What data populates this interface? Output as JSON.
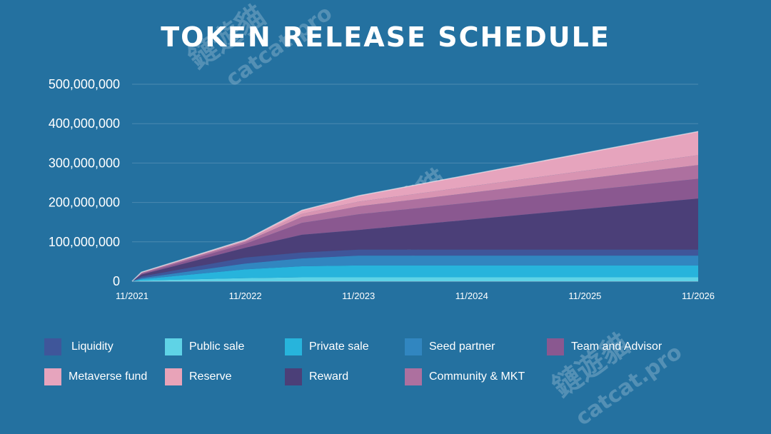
{
  "title": "TOKEN RELEASE SCHEDULE",
  "watermark": {
    "text1": "鏈遊貓",
    "text2": "catcat.pro"
  },
  "chart_data": {
    "type": "area",
    "stacked": true,
    "title": "TOKEN RELEASE SCHEDULE",
    "x": [
      "11/2021",
      "12/2021",
      "11/2022",
      "05/2023",
      "11/2023",
      "11/2026"
    ],
    "x_ticks": [
      "11/2021",
      "11/2022",
      "11/2023",
      "11/2024",
      "11/2025",
      "11/2026"
    ],
    "y_ticks": [
      "0",
      "100,000,000",
      "200,000,000",
      "300,000,000",
      "400,000,000",
      "500,000,000"
    ],
    "ylim": [
      0,
      500000000
    ],
    "grid": true,
    "series": [
      {
        "name": "Public sale",
        "color": "#5fd3e6",
        "values": [
          0,
          2000000,
          8000000,
          10000000,
          10000000,
          10000000
        ]
      },
      {
        "name": "Private sale",
        "color": "#27b4dc",
        "values": [
          0,
          3000000,
          22000000,
          28000000,
          30000000,
          30000000
        ]
      },
      {
        "name": "Seed partner",
        "color": "#3186c0",
        "values": [
          0,
          3000000,
          15000000,
          20000000,
          25000000,
          25000000
        ]
      },
      {
        "name": "Liquidity",
        "color": "#3f569a",
        "values": [
          0,
          4000000,
          15000000,
          15000000,
          15000000,
          15000000
        ]
      },
      {
        "name": "Reward",
        "color": "#4b3f78",
        "values": [
          0,
          5000000,
          25000000,
          45000000,
          50000000,
          130000000
        ]
      },
      {
        "name": "Team and Advisor",
        "color": "#8a5890",
        "values": [
          0,
          2000000,
          10000000,
          30000000,
          40000000,
          50000000
        ]
      },
      {
        "name": "Community & MKT",
        "color": "#ad709f",
        "values": [
          0,
          2000000,
          5000000,
          15000000,
          20000000,
          35000000
        ]
      },
      {
        "name": "Reserve",
        "color": "#d894b2",
        "values": [
          0,
          1000000,
          3000000,
          8000000,
          12000000,
          25000000
        ]
      },
      {
        "name": "Metaverse fund",
        "color": "#e6a4bd",
        "values": [
          0,
          1000000,
          2000000,
          9000000,
          15000000,
          60000000
        ]
      }
    ]
  },
  "legend": [
    {
      "label": "Liquidity",
      "color": "#3f569a"
    },
    {
      "label": "Public sale",
      "color": "#5fd3e6"
    },
    {
      "label": "Private sale",
      "color": "#27b4dc"
    },
    {
      "label": "Seed partner",
      "color": "#3186c0"
    },
    {
      "label": "Team and Advisor",
      "color": "#8a5890"
    },
    {
      "label": "Metaverse fund",
      "color": "#e6a4bd"
    },
    {
      "label": "Reserve",
      "color": "#e8a3b8"
    },
    {
      "label": "Reward",
      "color": "#4b3f78"
    },
    {
      "label": "Community & MKT",
      "color": "#ad709f"
    }
  ]
}
